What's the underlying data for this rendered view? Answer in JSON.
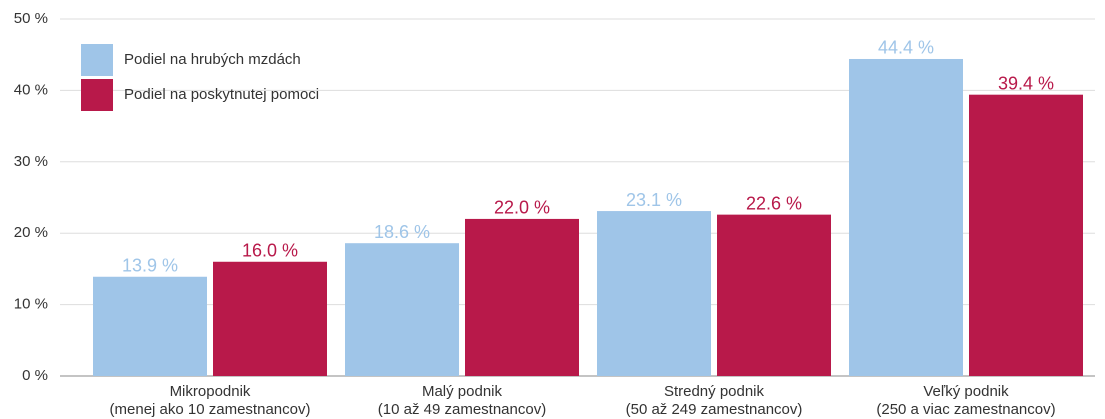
{
  "chart_data": {
    "type": "bar",
    "categories": [
      [
        "Mikropodnik",
        "(menej ako 10 zamestnancov)"
      ],
      [
        "Malý podnik",
        "(10 až 49 zamestnancov)"
      ],
      [
        "Stredný podnik",
        "(50 až 249 zamestnancov)"
      ],
      [
        "Veľký podnik",
        "(250 a viac zamestnancov)"
      ]
    ],
    "series": [
      {
        "name": "Podiel na hrubých mzdách",
        "color": "#9fc5e8",
        "values": [
          13.9,
          18.6,
          23.1,
          44.4
        ],
        "value_labels": [
          "13.9 %",
          "18.6 %",
          "23.1 %",
          "44.4 %"
        ]
      },
      {
        "name": "Podiel na poskytnutej pomoci",
        "color": "#b8194a",
        "values": [
          16.0,
          22.0,
          22.6,
          39.4
        ],
        "value_labels": [
          "16.0 %",
          "22.0 %",
          "22.6 %",
          "39.4 %"
        ]
      }
    ],
    "ylim": [
      0,
      50
    ],
    "yticks": [
      {
        "value": 0,
        "label": "0 %"
      },
      {
        "value": 10,
        "label": "10 %"
      },
      {
        "value": 20,
        "label": "20 %"
      },
      {
        "value": 30,
        "label": "30 %"
      },
      {
        "value": 40,
        "label": "40 %"
      },
      {
        "value": 50,
        "label": "50 %"
      }
    ],
    "grid": true,
    "legend": "top-left"
  }
}
